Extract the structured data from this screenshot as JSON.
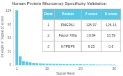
{
  "chart_data": {
    "type": "bar",
    "title": "Human Protein Microarray Specificity Validation",
    "xlabel": "Signal Rank",
    "ylabel": "Strength of Signal (Z score)",
    "x": [
      1,
      2,
      3,
      4,
      5,
      6,
      7,
      8,
      9,
      10,
      11,
      12,
      13,
      14,
      15,
      16,
      17,
      18,
      19,
      20,
      21,
      22,
      23,
      24,
      25,
      26,
      27,
      28,
      29,
      30
    ],
    "values": [
      125.97,
      19.84,
      9.25,
      7.5,
      5.8,
      4.9,
      4.2,
      3.7,
      3.2,
      2.9,
      2.6,
      2.4,
      2.2,
      2.0,
      1.9,
      1.8,
      1.7,
      1.6,
      1.5,
      1.4,
      1.3,
      1.2,
      1.1,
      1.0,
      0.95,
      0.9,
      0.85,
      0.8,
      0.75,
      0.7
    ],
    "color": "#55c8e8",
    "xlim": [
      0,
      31
    ],
    "xticks": [
      1,
      10,
      20,
      30
    ],
    "ylim": [
      0,
      130
    ],
    "yticks": [
      0,
      31,
      62,
      93,
      124
    ],
    "grid": false,
    "table": [
      [
        "Rank",
        "Protein",
        "Z score",
        "S score"
      ],
      [
        "1",
        "PMEPA1",
        "125.97",
        "126.13"
      ],
      [
        "2",
        "Factor XIIIa",
        "19.84",
        "13.59"
      ],
      [
        "3",
        "GTPBP6",
        "9.25",
        "0.8"
      ]
    ]
  }
}
